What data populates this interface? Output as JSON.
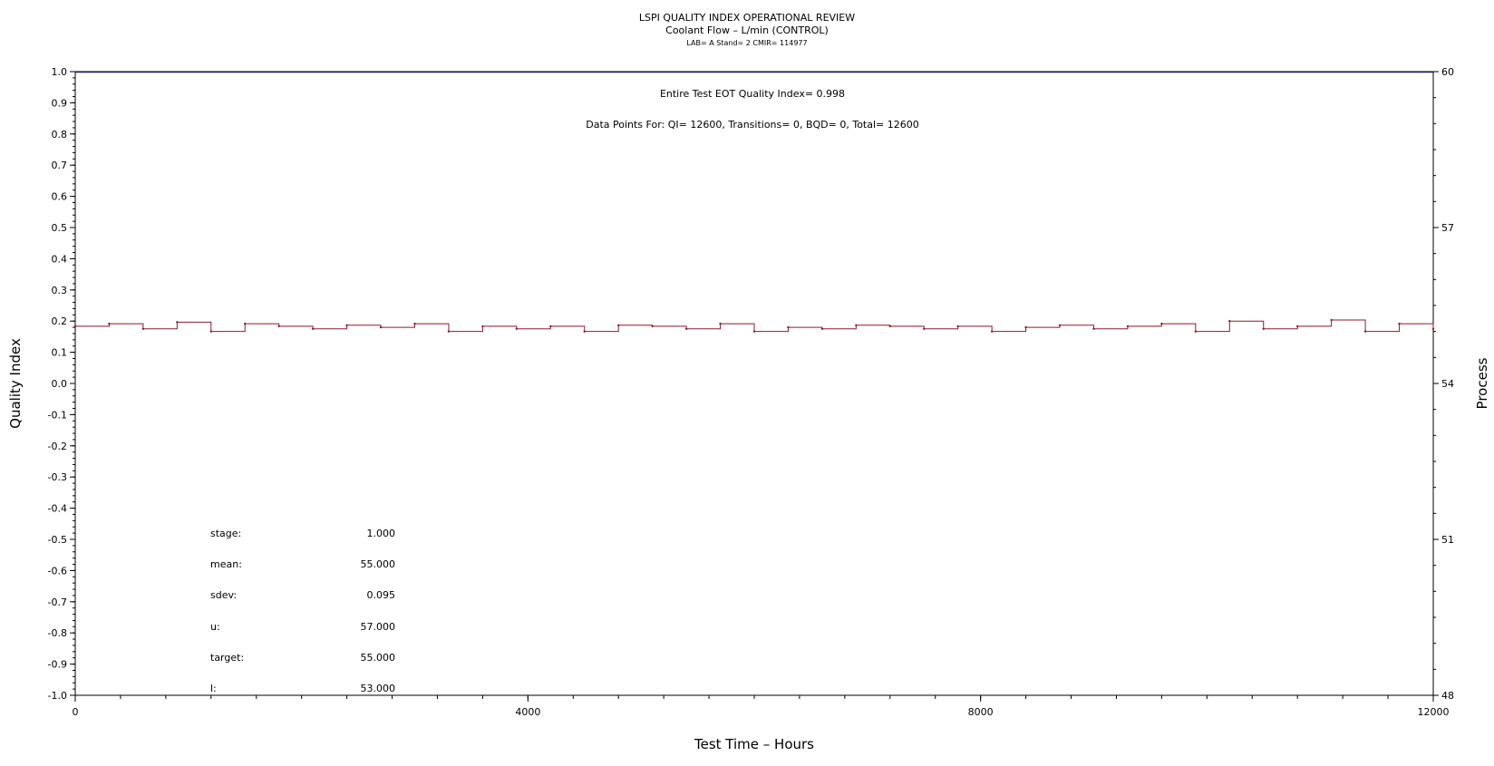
{
  "header": {
    "title": "LSPI QUALITY INDEX OPERATIONAL REVIEW",
    "subtitle": "Coolant Flow – L/min (CONTROL)",
    "meta": "LAB= A Stand= 2 CMIR= 114977"
  },
  "annotations": {
    "eot": "Entire Test EOT Quality Index=   0.998",
    "points": "Data Points For: QI= 12600, Transitions=     0, BQD=     0, Total= 12600"
  },
  "stats": [
    {
      "label": "stage:",
      "value": "1.000"
    },
    {
      "label": "mean:",
      "value": "55.000"
    },
    {
      "label": "sdev:",
      "value": "0.095"
    },
    {
      "label": "u:",
      "value": "57.000"
    },
    {
      "label": "target:",
      "value": "55.000"
    },
    {
      "label": "l:",
      "value": "53.000"
    }
  ],
  "colors": {
    "series": "#8b1a2b",
    "qi_line": "#1f2a6b",
    "axis": "#000000"
  },
  "chart_data": {
    "type": "line",
    "xlabel": "Test Time – Hours",
    "ylabel": "Quality Index",
    "y2label": "Process",
    "xlim": [
      0,
      12000
    ],
    "ylim": [
      -1.0,
      1.0
    ],
    "y2lim": [
      48,
      60
    ],
    "x_ticks": [
      "0",
      "4000",
      "8000",
      "12000"
    ],
    "y_ticks": [
      "1.0",
      "0.9",
      "0.8",
      "0.7",
      "0.6",
      "0.5",
      "0.4",
      "0.3",
      "0.2",
      "0.1",
      "0.0",
      "-0.1",
      "-0.2",
      "-0.3",
      "-0.4",
      "-0.5",
      "-0.6",
      "-0.7",
      "-0.8",
      "-0.9",
      "-1.0"
    ],
    "y2_ticks": [
      "60",
      "57",
      "54",
      "51",
      "48"
    ],
    "series": [
      {
        "name": "Quality Index",
        "x": [
          0,
          12000
        ],
        "values": [
          0.998,
          0.998
        ]
      },
      {
        "name": "Process",
        "x": [
          0,
          300,
          600,
          900,
          1200,
          1500,
          1800,
          2100,
          2400,
          2700,
          3000,
          3300,
          3600,
          3900,
          4200,
          4500,
          4800,
          5100,
          5400,
          5700,
          6000,
          6300,
          6600,
          6900,
          7200,
          7500,
          7800,
          8100,
          8400,
          8700,
          9000,
          9300,
          9600,
          9900,
          10200,
          10500,
          10800,
          11100,
          11400,
          11700,
          12000
        ],
        "values": [
          55.1,
          55.15,
          55.05,
          55.18,
          55.0,
          55.15,
          55.1,
          55.05,
          55.12,
          55.08,
          55.15,
          55.0,
          55.1,
          55.05,
          55.1,
          55.0,
          55.12,
          55.1,
          55.05,
          55.15,
          55.0,
          55.08,
          55.05,
          55.12,
          55.1,
          55.05,
          55.1,
          55.0,
          55.08,
          55.12,
          55.05,
          55.1,
          55.15,
          55.0,
          55.2,
          55.05,
          55.1,
          55.22,
          55.0,
          55.15,
          55.05
        ]
      }
    ]
  }
}
